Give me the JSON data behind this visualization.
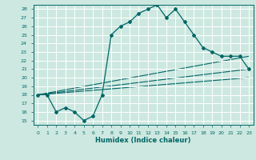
{
  "xlabel": "Humidex (Indice chaleur)",
  "ylabel": "",
  "xlim": [
    -0.5,
    23.5
  ],
  "ylim": [
    14.5,
    28.5
  ],
  "yticks": [
    15,
    16,
    17,
    18,
    19,
    20,
    21,
    22,
    23,
    24,
    25,
    26,
    27,
    28
  ],
  "xticks": [
    0,
    1,
    2,
    3,
    4,
    5,
    6,
    7,
    8,
    9,
    10,
    11,
    12,
    13,
    14,
    15,
    16,
    17,
    18,
    19,
    20,
    21,
    22,
    23
  ],
  "bg_color": "#cde8e0",
  "line_color": "#006666",
  "grid_color": "#ffffff",
  "series": [
    {
      "x": [
        0,
        1,
        2,
        3,
        4,
        5,
        6,
        7,
        8,
        9,
        10,
        11,
        12,
        13,
        14,
        15,
        16,
        17,
        18,
        19,
        20,
        21,
        22,
        23
      ],
      "y": [
        18.0,
        18.0,
        16.0,
        16.5,
        16.0,
        15.0,
        15.5,
        18.0,
        25.0,
        26.0,
        26.5,
        27.5,
        28.0,
        28.5,
        27.0,
        28.0,
        26.5,
        25.0,
        23.5,
        23.0,
        22.5,
        22.5,
        22.5,
        21.0
      ]
    },
    {
      "x": [
        0,
        23
      ],
      "y": [
        18.0,
        22.5
      ]
    },
    {
      "x": [
        0,
        23
      ],
      "y": [
        18.0,
        21.0
      ]
    },
    {
      "x": [
        0,
        23
      ],
      "y": [
        18.0,
        20.0
      ]
    }
  ]
}
